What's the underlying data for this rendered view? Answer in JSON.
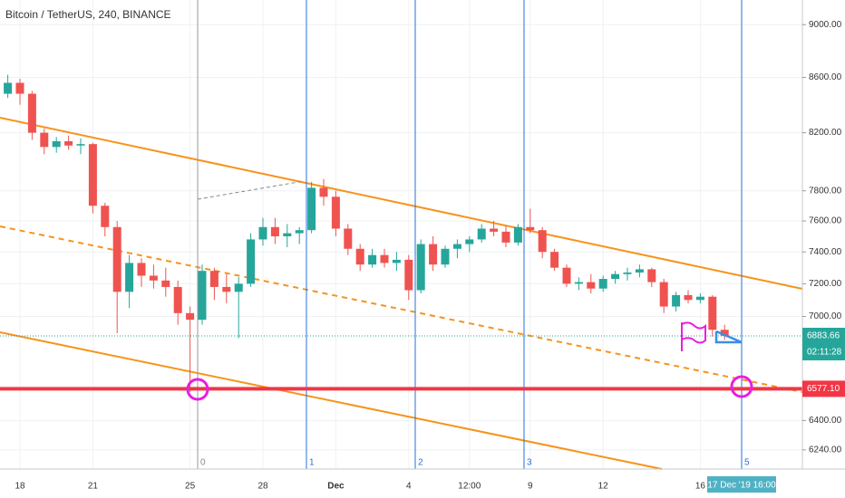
{
  "chart_data": {
    "type": "candlestick",
    "title": "Bitcoin / TetherUS, 240, BINANCE",
    "log_scale": true,
    "grid": true,
    "up_color": "#26a69a",
    "down_color": "#ef5350",
    "ylim": [
      6138,
      9193
    ],
    "yticks": [
      {
        "value": 9000,
        "label": "9000.00"
      },
      {
        "value": 8600,
        "label": "8600.00"
      },
      {
        "value": 8200,
        "label": "8200.00"
      },
      {
        "value": 7800,
        "label": "7800.00"
      },
      {
        "value": 7600,
        "label": "7600.00"
      },
      {
        "value": 7400,
        "label": "7400.00"
      },
      {
        "value": 7200,
        "label": "7200.00"
      },
      {
        "value": 7000,
        "label": "7000.00"
      },
      {
        "value": 6400,
        "label": "6400.00"
      },
      {
        "value": 6240,
        "label": "6240.00"
      }
    ],
    "categories": [
      null,
      "18",
      null,
      null,
      null,
      null,
      null,
      "21",
      null,
      null,
      null,
      null,
      null,
      null,
      null,
      "25",
      null,
      null,
      null,
      null,
      null,
      "28",
      null,
      null,
      null,
      null,
      null,
      "Dec",
      null,
      null,
      null,
      null,
      null,
      "4",
      null,
      null,
      null,
      null,
      "12:00",
      null,
      null,
      null,
      null,
      "9",
      null,
      null,
      null,
      null,
      null,
      "12",
      null,
      null,
      null,
      null,
      null,
      null,
      null,
      "16",
      null,
      null
    ],
    "open": [
      8480,
      8560,
      8480,
      8200,
      8100,
      8140,
      8110,
      8120,
      7700,
      7560,
      7150,
      7330,
      7250,
      7220,
      7180,
      7020,
      6980,
      7280,
      7180,
      7150,
      7200,
      7480,
      7560,
      7500,
      7520,
      7540,
      7820,
      7760,
      7550,
      7420,
      7320,
      7380,
      7330,
      7350,
      7160,
      7450,
      7320,
      7420,
      7450,
      7480,
      7550,
      7530,
      7460,
      7560,
      7540,
      7400,
      7300,
      7200,
      7210,
      7170,
      7230,
      7260,
      7270,
      7290,
      7210,
      7060,
      7130,
      7100,
      7120,
      6920
    ],
    "high": [
      8620,
      8590,
      8500,
      8230,
      8170,
      8180,
      8160,
      8130,
      7720,
      7600,
      7380,
      7360,
      7320,
      7300,
      7220,
      7060,
      7320,
      7300,
      7260,
      7240,
      7520,
      7620,
      7620,
      7580,
      7560,
      7860,
      7880,
      7800,
      7580,
      7450,
      7420,
      7420,
      7400,
      7380,
      7480,
      7500,
      7440,
      7480,
      7500,
      7580,
      7600,
      7570,
      7580,
      7680,
      7560,
      7420,
      7320,
      7240,
      7260,
      7250,
      7280,
      7300,
      7320,
      7300,
      7230,
      7150,
      7160,
      7140,
      7130,
      6950
    ],
    "low": [
      8450,
      8400,
      8150,
      8050,
      8060,
      8080,
      8050,
      7650,
      7500,
      6900,
      7050,
      7180,
      7170,
      7120,
      6950,
      6560,
      6950,
      7100,
      7080,
      6870,
      7180,
      7440,
      7450,
      7430,
      7450,
      7520,
      7700,
      7500,
      7380,
      7280,
      7300,
      7300,
      7280,
      7100,
      7140,
      7280,
      7300,
      7360,
      7400,
      7460,
      7500,
      7430,
      7440,
      7520,
      7360,
      7280,
      7180,
      7160,
      7140,
      7150,
      7200,
      7220,
      7240,
      7180,
      7020,
      7030,
      7080,
      7080,
      6880,
      6860
    ],
    "close": [
      8560,
      8480,
      8200,
      8100,
      8140,
      8110,
      8120,
      7700,
      7560,
      7150,
      7330,
      7250,
      7220,
      7180,
      7020,
      6980,
      7280,
      7180,
      7150,
      7200,
      7480,
      7560,
      7500,
      7520,
      7540,
      7820,
      7760,
      7550,
      7420,
      7320,
      7380,
      7330,
      7350,
      7160,
      7450,
      7320,
      7420,
      7450,
      7480,
      7550,
      7530,
      7460,
      7560,
      7540,
      7400,
      7300,
      7200,
      7210,
      7170,
      7230,
      7260,
      7270,
      7290,
      7210,
      7060,
      7130,
      7100,
      7120,
      6920,
      6884
    ],
    "current_price": {
      "value": 6883.66,
      "label": "6883.66"
    },
    "countdown": "02:11:28",
    "level": {
      "value": 6577.1,
      "label": "6577.10"
    },
    "cycle_labels": [
      "0",
      "1",
      "2",
      "3",
      "5"
    ],
    "cursor_time": "17 Dec '19  16:00"
  }
}
